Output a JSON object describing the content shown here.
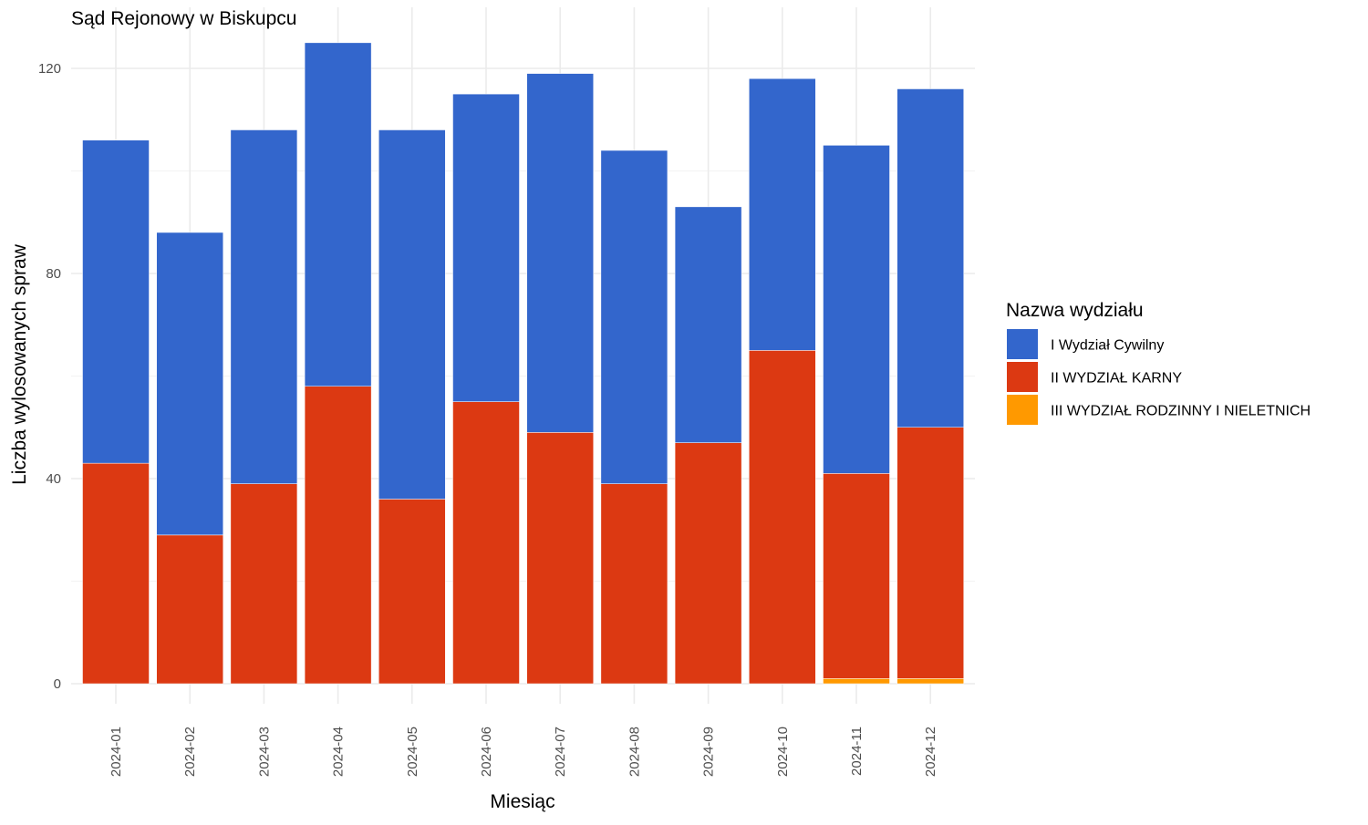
{
  "chart_data": {
    "type": "bar",
    "stacked": true,
    "title": "Sąd Rejonowy w Biskupcu",
    "xlabel": "Miesiąc",
    "ylabel": "Liczba wylosowanych spraw",
    "categories": [
      "2024-01",
      "2024-02",
      "2024-03",
      "2024-04",
      "2024-05",
      "2024-06",
      "2024-07",
      "2024-08",
      "2024-09",
      "2024-10",
      "2024-11",
      "2024-12"
    ],
    "series": [
      {
        "name": "I Wydział Cywilny",
        "color": "#3366CC",
        "values": [
          63,
          59,
          69,
          67,
          72,
          60,
          70,
          65,
          46,
          53,
          64,
          66
        ]
      },
      {
        "name": "II WYDZIAŁ KARNY",
        "color": "#DC3912",
        "values": [
          43,
          29,
          39,
          58,
          36,
          55,
          49,
          39,
          47,
          65,
          40,
          49
        ]
      },
      {
        "name": "III WYDZIAŁ RODZINNY I NIELETNICH",
        "color": "#FF9900",
        "values": [
          0,
          0,
          0,
          0,
          0,
          0,
          0,
          0,
          0,
          0,
          1,
          1
        ]
      }
    ],
    "stack_order_bottom_to_top": [
      "III WYDZIAŁ RODZINNY I NIELETNICH",
      "II WYDZIAŁ KARNY",
      "I Wydział Cywilny"
    ],
    "ylim": [
      0,
      125
    ],
    "y_ticks": [
      0,
      40,
      80,
      120
    ],
    "grid": true,
    "legend": {
      "title": "Nazwa wydziału",
      "position": "right"
    }
  }
}
